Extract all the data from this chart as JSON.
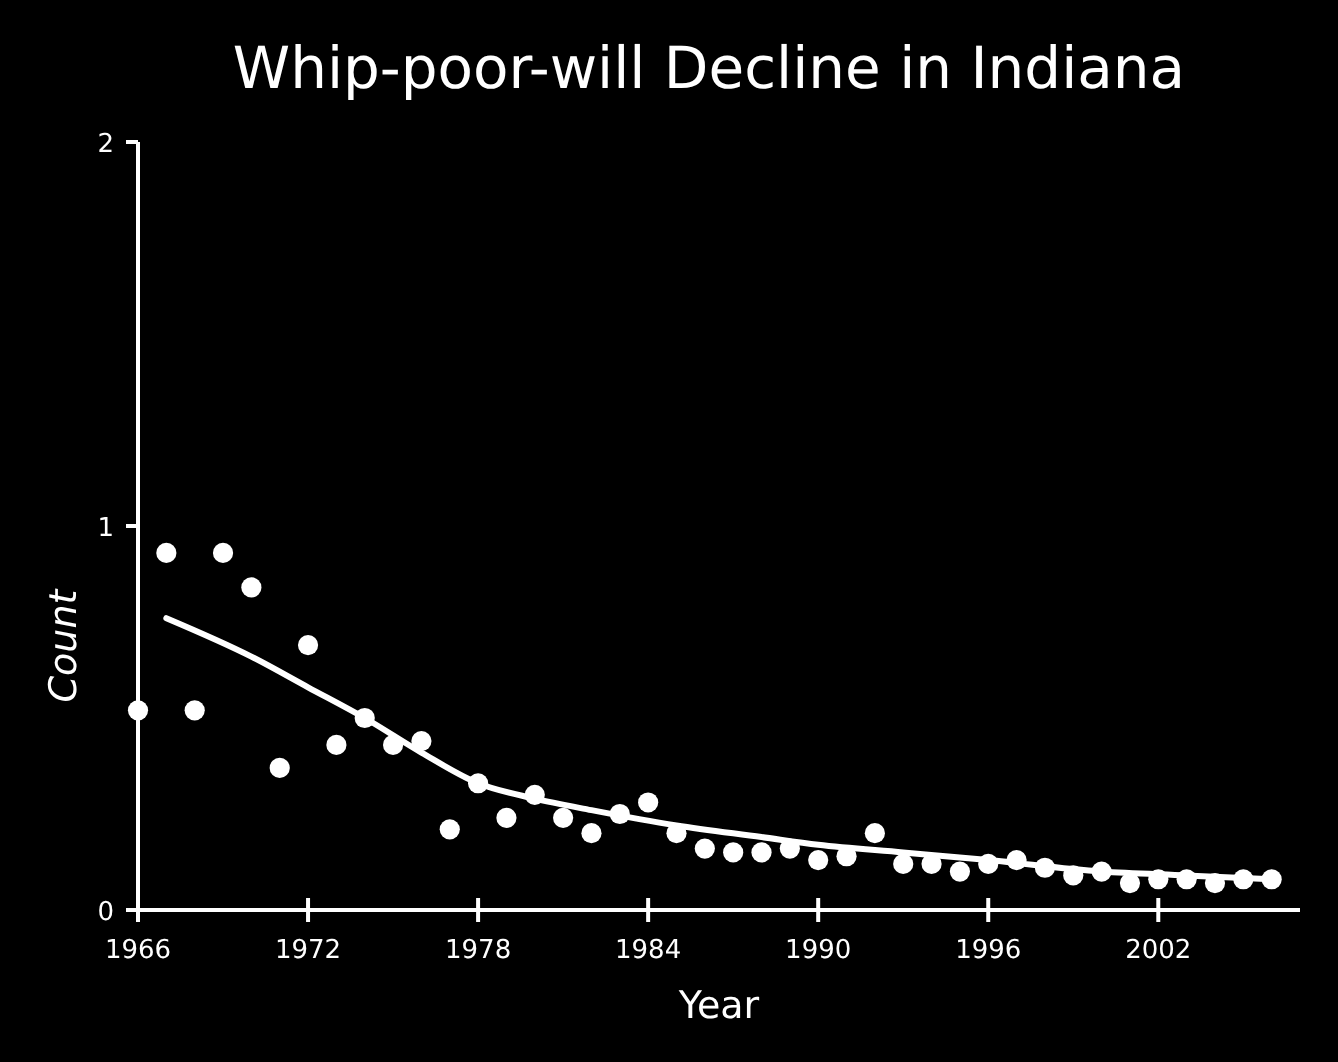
{
  "chart_data": {
    "type": "scatter",
    "title": "Whip-poor-will Decline in Indiana",
    "xlabel": "Year",
    "ylabel": "Count",
    "x": [
      1966,
      1967,
      1968,
      1969,
      1970,
      1971,
      1972,
      1973,
      1974,
      1975,
      1976,
      1977,
      1978,
      1979,
      1980,
      1981,
      1982,
      1983,
      1984,
      1985,
      1986,
      1987,
      1988,
      1989,
      1990,
      1991,
      1992,
      1993,
      1994,
      1995,
      1996,
      1997,
      1998,
      1999,
      2000,
      2001,
      2002,
      2003,
      2004,
      2005,
      2006
    ],
    "series": [
      {
        "color": "#ffffff",
        "marker": "circle",
        "values": [
          0.52,
          0.93,
          0.52,
          0.93,
          0.84,
          0.37,
          0.69,
          0.43,
          0.5,
          0.43,
          0.44,
          0.21,
          0.33,
          0.24,
          0.3,
          0.24,
          0.2,
          0.25,
          0.28,
          0.2,
          0.16,
          0.15,
          0.15,
          0.16,
          0.13,
          0.14,
          0.2,
          0.12,
          0.12,
          0.1,
          0.12,
          0.13,
          0.11,
          0.09,
          0.1,
          0.07,
          0.08,
          0.08,
          0.07,
          0.08,
          0.08
        ]
      },
      {
        "type": "line",
        "color": "#ffffff",
        "marker": "none",
        "x": [
          1967,
          1970,
          1972,
          1974,
          1976,
          1978,
          1980,
          1982,
          1985,
          1988,
          1990,
          1993,
          1996,
          2000,
          2003,
          2006
        ],
        "values": [
          0.76,
          0.66,
          0.58,
          0.5,
          0.41,
          0.33,
          0.29,
          0.26,
          0.22,
          0.19,
          0.17,
          0.15,
          0.13,
          0.1,
          0.09,
          0.08
        ]
      }
    ],
    "xlim": [
      1966,
      2007
    ],
    "xticks": [
      1966,
      1972,
      1978,
      1984,
      1990,
      1996,
      2002
    ],
    "ylim": [
      0,
      2
    ],
    "yticks": [
      0,
      1,
      2
    ],
    "grid": false
  }
}
